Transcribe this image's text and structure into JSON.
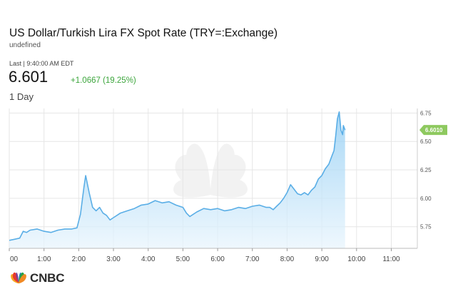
{
  "header": {
    "title": "US Dollar/Turkish Lira FX Spot Rate (TRY=:Exchange)",
    "subtitle": "undefined",
    "last_label": "Last | 9:40:00 AM EDT",
    "price": "6.601",
    "change": "+1.0667 (19.25%)",
    "range": "1 Day"
  },
  "colors": {
    "line": "#5aaee6",
    "fill_top": "#8ccbf3",
    "fill_bottom": "#e9f5fd",
    "grid": "#e6e6e6",
    "price_tag": "#8ec95f",
    "change_up": "#3ba53b"
  },
  "logo": {
    "text": "CNBC",
    "icon": "peacock-logo-icon"
  },
  "chart_data": {
    "type": "area",
    "x_unit": "hours",
    "xlim": [
      0,
      11.75
    ],
    "ylim": [
      5.56,
      6.79
    ],
    "x_ticks": [
      0,
      1,
      2,
      3,
      4,
      5,
      6,
      7,
      8,
      9,
      10,
      11
    ],
    "x_tick_labels": [
      "00",
      "1:00",
      "2:00",
      "3:00",
      "4:00",
      "5:00",
      "6:00",
      "7:00",
      "8:00",
      "9:00",
      "10:00",
      "11:00"
    ],
    "y_ticks": [
      5.75,
      6.0,
      6.25,
      6.5,
      6.75
    ],
    "y_tick_labels": [
      "5.75",
      "6.00",
      "6.25",
      "6.50",
      "6.75"
    ],
    "last_value_label": "6.6010",
    "last_value": 6.601,
    "grid": true,
    "series": [
      {
        "x": [
          0,
          0.15,
          0.3,
          0.4,
          0.5,
          0.6,
          0.8,
          1.0,
          1.2,
          1.4,
          1.6,
          1.8,
          1.95,
          2.05,
          2.15,
          2.2,
          2.3,
          2.4,
          2.5,
          2.6,
          2.7,
          2.8,
          2.9,
          3.0,
          3.1,
          3.2,
          3.4,
          3.6,
          3.8,
          4.0,
          4.2,
          4.4,
          4.6,
          4.8,
          5.0,
          5.1,
          5.2,
          5.4,
          5.6,
          5.8,
          6.0,
          6.2,
          6.4,
          6.6,
          6.8,
          7.0,
          7.2,
          7.4,
          7.5,
          7.6,
          7.7,
          7.8,
          7.9,
          8.0,
          8.1,
          8.2,
          8.3,
          8.4,
          8.5,
          8.6,
          8.7,
          8.8,
          8.9,
          9.0,
          9.1,
          9.2,
          9.3,
          9.35,
          9.4,
          9.45,
          9.5,
          9.55,
          9.6,
          9.62,
          9.67
        ],
        "y": [
          5.63,
          5.64,
          5.65,
          5.71,
          5.7,
          5.72,
          5.73,
          5.71,
          5.7,
          5.72,
          5.73,
          5.73,
          5.74,
          5.86,
          6.1,
          6.2,
          6.05,
          5.92,
          5.89,
          5.92,
          5.87,
          5.85,
          5.81,
          5.83,
          5.85,
          5.87,
          5.89,
          5.91,
          5.94,
          5.95,
          5.98,
          5.96,
          5.97,
          5.94,
          5.92,
          5.87,
          5.84,
          5.88,
          5.91,
          5.9,
          5.91,
          5.89,
          5.9,
          5.92,
          5.91,
          5.93,
          5.94,
          5.92,
          5.92,
          5.9,
          5.93,
          5.96,
          6.0,
          6.05,
          6.12,
          6.08,
          6.04,
          6.03,
          6.05,
          6.03,
          6.07,
          6.1,
          6.17,
          6.2,
          6.26,
          6.3,
          6.38,
          6.42,
          6.55,
          6.7,
          6.76,
          6.6,
          6.56,
          6.64,
          6.6
        ]
      }
    ]
  }
}
